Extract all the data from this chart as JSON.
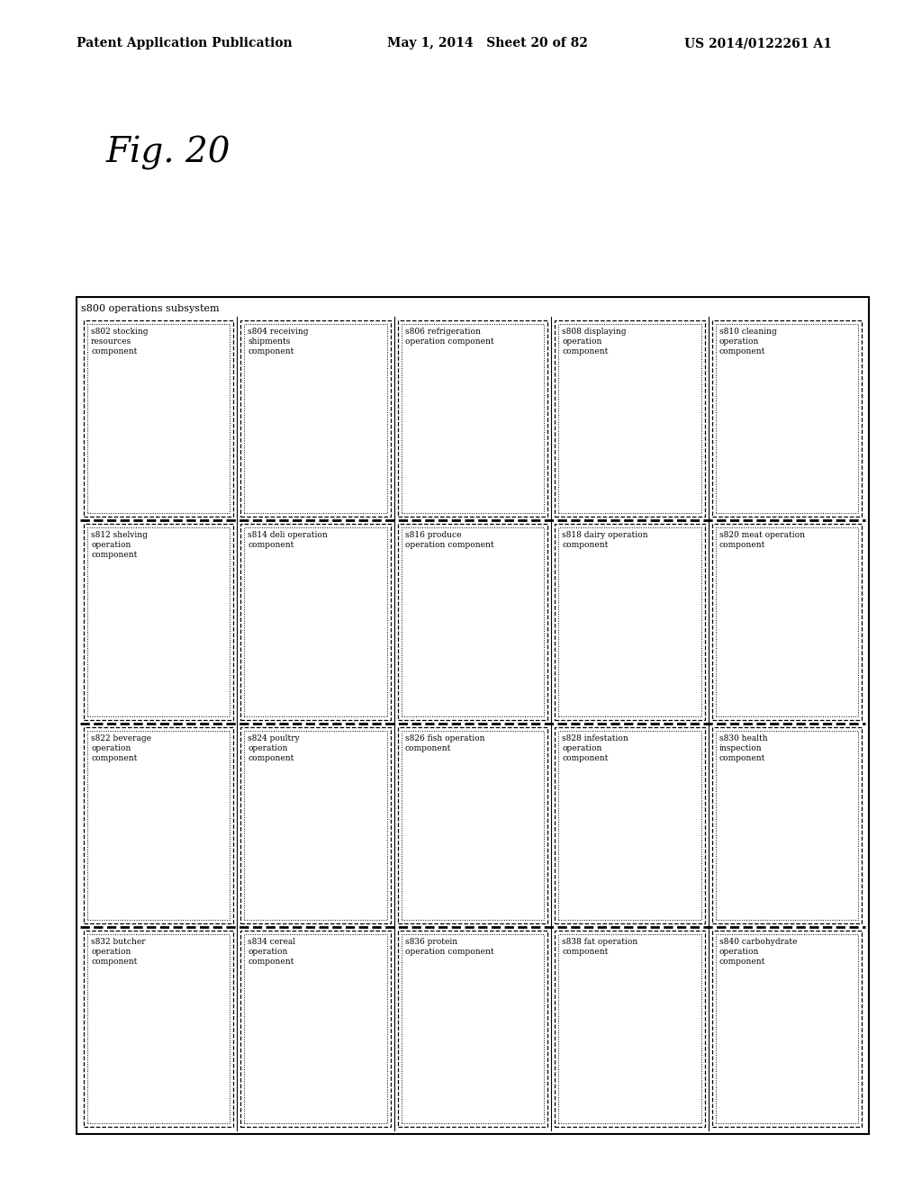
{
  "title_header": "Patent Application Publication",
  "title_date": "May 1, 2014   Sheet 20 of 82",
  "title_patent": "US 2014/0122261 A1",
  "fig_label": "Fig. 20",
  "background_color": "#ffffff",
  "outer_box_label": "s800 operations subsystem",
  "columns": [
    [
      {
        "id": "s802",
        "lines": [
          "s802 stocking",
          "resources",
          "component"
        ]
      },
      {
        "id": "s812",
        "lines": [
          "s812 shelving",
          "operation",
          "component"
        ]
      },
      {
        "id": "s822",
        "lines": [
          "s822 beverage",
          "operation",
          "component"
        ]
      },
      {
        "id": "s832",
        "lines": [
          "s832 butcher",
          "operation",
          "component"
        ]
      }
    ],
    [
      {
        "id": "s804",
        "lines": [
          "s804 receiving",
          "shipments",
          "component"
        ]
      },
      {
        "id": "s814",
        "lines": [
          "s814 deli operation",
          "component"
        ]
      },
      {
        "id": "s824",
        "lines": [
          "s824 poultry",
          "operation",
          "component"
        ]
      },
      {
        "id": "s834",
        "lines": [
          "s834 cereal",
          "operation",
          "component"
        ]
      }
    ],
    [
      {
        "id": "s806",
        "lines": [
          "s806 refrigeration",
          "operation component"
        ]
      },
      {
        "id": "s816",
        "lines": [
          "s816 produce",
          "operation component"
        ]
      },
      {
        "id": "s826",
        "lines": [
          "s826 fish operation",
          "component"
        ]
      },
      {
        "id": "s836",
        "lines": [
          "s836 protein",
          "operation component"
        ]
      }
    ],
    [
      {
        "id": "s808",
        "lines": [
          "s808 displaying",
          "operation",
          "component"
        ]
      },
      {
        "id": "s818",
        "lines": [
          "s818 dairy operation",
          "component"
        ]
      },
      {
        "id": "s828",
        "lines": [
          "s828 infestation",
          "operation",
          "component"
        ]
      },
      {
        "id": "s838",
        "lines": [
          "s838 fat operation",
          "component"
        ]
      }
    ],
    [
      {
        "id": "s810",
        "lines": [
          "s810 cleaning",
          "operation",
          "component"
        ]
      },
      {
        "id": "s820",
        "lines": [
          "s820 meat operation",
          "component"
        ]
      },
      {
        "id": "s830",
        "lines": [
          "s830 health",
          "inspection",
          "component"
        ]
      },
      {
        "id": "s840",
        "lines": [
          "s840 carbohydrate",
          "operation",
          "component"
        ]
      }
    ]
  ]
}
